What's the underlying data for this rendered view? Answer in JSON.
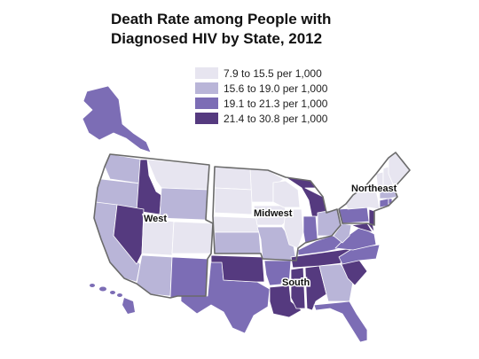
{
  "title": [
    "Death Rate among People with",
    "Diagnosed HIV by State, 2012"
  ],
  "colors": {
    "c1": "#e7e5f0",
    "c2": "#b9b5d8",
    "c3": "#7c6db5",
    "c4": "#553a7f",
    "outline": "#6b6b6b",
    "background": "#ffffff"
  },
  "legend": [
    {
      "label": "7.9 to 15.5 per 1,000",
      "color": "#e7e5f0"
    },
    {
      "label": "15.6 to 19.0 per 1,000",
      "color": "#b9b5d8"
    },
    {
      "label": "19.1 to 21.3 per 1,000",
      "color": "#7c6db5"
    },
    {
      "label": "21.4 to 30.8 per 1,000",
      "color": "#553a7f"
    }
  ],
  "regions": {
    "west": "West",
    "midwest": "Midwest",
    "south": "South",
    "northeast": "Northeast"
  }
}
